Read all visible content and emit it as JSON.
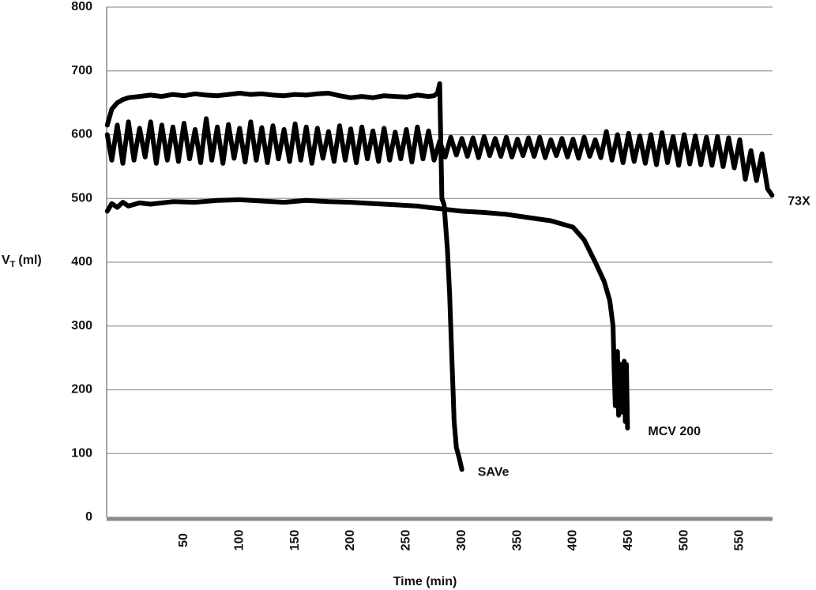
{
  "chart_data": {
    "type": "line",
    "x_label": "Time (min)",
    "y_label": {
      "main": "V",
      "sub": "T",
      "unit": "(ml)"
    },
    "xlim": [
      -19.6,
      579.5
    ],
    "xticks": [
      50,
      100,
      150,
      200,
      250,
      300,
      350,
      400,
      450,
      500,
      550
    ],
    "ylim": [
      0,
      800
    ],
    "yticks": [
      0,
      100,
      200,
      300,
      400,
      500,
      600,
      700,
      800
    ],
    "grid": true,
    "series": [
      {
        "name": "73X",
        "color": "#000000",
        "x": [
          -19,
          -15,
          -10,
          -5,
          0,
          5,
          10,
          15,
          20,
          25,
          30,
          35,
          40,
          45,
          50,
          55,
          60,
          65,
          70,
          75,
          80,
          85,
          90,
          95,
          100,
          105,
          110,
          115,
          120,
          125,
          130,
          135,
          140,
          145,
          150,
          155,
          160,
          165,
          170,
          175,
          180,
          185,
          190,
          195,
          200,
          205,
          210,
          215,
          220,
          225,
          230,
          235,
          240,
          245,
          250,
          255,
          260,
          265,
          270,
          275,
          280,
          285,
          290,
          295,
          300,
          305,
          310,
          315,
          320,
          325,
          330,
          335,
          340,
          345,
          350,
          355,
          360,
          365,
          370,
          375,
          380,
          385,
          390,
          395,
          400,
          405,
          410,
          415,
          420,
          425,
          430,
          435,
          440,
          445,
          450,
          455,
          460,
          465,
          470,
          475,
          480,
          485,
          490,
          495,
          500,
          505,
          510,
          515,
          520,
          525,
          530,
          535,
          540,
          545,
          550,
          555,
          560,
          565,
          570,
          575,
          579
        ],
        "values": [
          600,
          560,
          615,
          555,
          620,
          560,
          610,
          565,
          620,
          555,
          615,
          560,
          612,
          558,
          618,
          562,
          608,
          556,
          625,
          560,
          612,
          555,
          616,
          563,
          610,
          557,
          620,
          560,
          611,
          556,
          614,
          562,
          608,
          558,
          617,
          560,
          612,
          555,
          610,
          563,
          605,
          558,
          614,
          560,
          609,
          556,
          612,
          562,
          606,
          558,
          610,
          560,
          604,
          562,
          608,
          557,
          612,
          562,
          606,
          560,
          590,
          565,
          596,
          568,
          594,
          566,
          595,
          564,
          597,
          567,
          594,
          566,
          596,
          565,
          593,
          567,
          595,
          566,
          596,
          564,
          592,
          567,
          594,
          565,
          593,
          563,
          596,
          566,
          592,
          564,
          605,
          560,
          600,
          556,
          602,
          558,
          598,
          555,
          600,
          553,
          603,
          556,
          597,
          552,
          600,
          554,
          598,
          553,
          596,
          552,
          597,
          550,
          595,
          548,
          592,
          530,
          575,
          528,
          570,
          515,
          505
        ]
      },
      {
        "name": "MCV 200",
        "color": "#000000",
        "x": [
          -19,
          -15,
          -10,
          -5,
          0,
          10,
          20,
          40,
          60,
          80,
          100,
          120,
          140,
          160,
          180,
          200,
          220,
          240,
          260,
          270,
          280,
          290,
          300,
          320,
          340,
          360,
          380,
          400,
          410,
          420,
          428,
          433,
          436,
          437,
          438,
          440,
          441,
          443,
          444,
          446,
          447,
          448,
          449
        ],
        "values": [
          480,
          492,
          486,
          494,
          488,
          493,
          491,
          495,
          494,
          497,
          498,
          496,
          494,
          497,
          495,
          494,
          492,
          490,
          488,
          486,
          484,
          482,
          480,
          478,
          475,
          470,
          465,
          455,
          435,
          400,
          370,
          340,
          300,
          230,
          175,
          260,
          160,
          240,
          165,
          245,
          150,
          240,
          140
        ]
      },
      {
        "name": "SAVe",
        "color": "#000000",
        "x": [
          -19,
          -15,
          -10,
          -5,
          0,
          10,
          20,
          30,
          40,
          50,
          60,
          70,
          80,
          90,
          100,
          110,
          120,
          130,
          140,
          150,
          160,
          170,
          180,
          190,
          200,
          210,
          220,
          230,
          240,
          250,
          260,
          270,
          275,
          278,
          280,
          282,
          284,
          287,
          289,
          290,
          291,
          292,
          293,
          295,
          298,
          300
        ],
        "values": [
          615,
          640,
          650,
          655,
          658,
          660,
          662,
          660,
          663,
          661,
          664,
          662,
          661,
          663,
          665,
          663,
          664,
          662,
          661,
          663,
          662,
          664,
          665,
          661,
          658,
          660,
          658,
          661,
          660,
          659,
          662,
          660,
          661,
          665,
          680,
          500,
          490,
          420,
          350,
          300,
          250,
          200,
          150,
          110,
          90,
          75
        ]
      }
    ]
  }
}
